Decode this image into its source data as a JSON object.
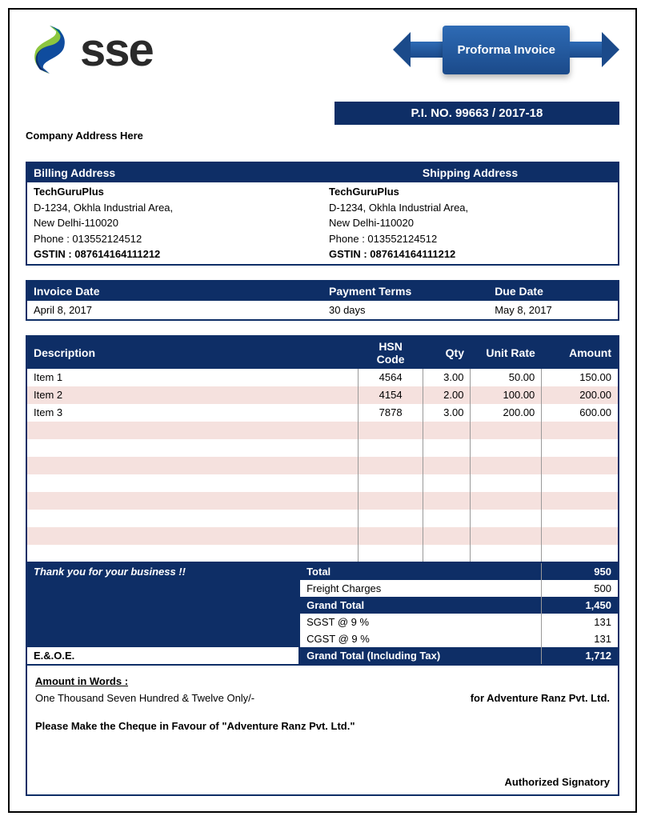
{
  "colors": {
    "primary": "#0e2e66",
    "banner_gradient_top": "#2e6bb5",
    "banner_gradient_bottom": "#1b4a8a",
    "stripe": "#f5e1de",
    "logo_green_top": "#8dc63f",
    "logo_green_bottom": "#009247",
    "logo_blue_top": "#0f4c9e",
    "logo_blue_bottom": "#0a2f6e"
  },
  "logo_text": "sse",
  "banner_title": "Proforma Invoice",
  "pino_label": "P.I. NO. 99663 / 2017-18",
  "company_address_label": "Company Address Here",
  "address_headers": {
    "billing": "Billing Address",
    "shipping": "Shipping Address"
  },
  "billing": {
    "name": "TechGuruPlus",
    "line1": "D-1234, Okhla Industrial Area,",
    "line2": "New Delhi-110020",
    "phone": "Phone : 013552124512",
    "gstin": "GSTIN : 087614164111212"
  },
  "shipping": {
    "name": "TechGuruPlus",
    "line1": "D-1234, Okhla Industrial Area,",
    "line2": "New Delhi-110020",
    "phone": "Phone : 013552124512",
    "gstin": "GSTIN : 087614164111212"
  },
  "meta_headers": {
    "invoice_date": "Invoice Date",
    "payment_terms": "Payment Terms",
    "due_date": "Due Date"
  },
  "meta": {
    "invoice_date": "April 8, 2017",
    "payment_terms": "30 days",
    "due_date": "May 8, 2017"
  },
  "item_headers": {
    "description": "Description",
    "hsn": "HSN Code",
    "qty": "Qty",
    "rate": "Unit Rate",
    "amount": "Amount"
  },
  "items": [
    {
      "description": "Item 1",
      "hsn": "4564",
      "qty": "3.00",
      "rate": "50.00",
      "amount": "150.00"
    },
    {
      "description": "Item 2",
      "hsn": "4154",
      "qty": "2.00",
      "rate": "100.00",
      "amount": "200.00"
    },
    {
      "description": "Item 3",
      "hsn": "7878",
      "qty": "3.00",
      "rate": "200.00",
      "amount": "600.00"
    }
  ],
  "blank_rows": 8,
  "thank_you": "Thank you for your business !!",
  "eoe": "E.&.O.E.",
  "summary": {
    "total_label": "Total",
    "total": "950",
    "freight_label": "Freight Charges",
    "freight": "500",
    "grand_label": "Grand Total",
    "grand": "1,450",
    "sgst_label": "SGST @ 9 %",
    "sgst": "131",
    "cgst_label": "CGST @ 9 %",
    "cgst": "131",
    "grand_tax_label": "Grand Total (Including Tax)",
    "grand_tax": "1,712"
  },
  "footer": {
    "aiw_label": "Amount in Words :",
    "words": "One Thousand Seven Hundred & Twelve Only/-",
    "for_company": "for Adventure Ranz Pvt. Ltd.",
    "cheque": "Please Make the Cheque in Favour of \"Adventure Ranz Pvt. Ltd.\"",
    "signatory": "Authorized Signatory"
  }
}
